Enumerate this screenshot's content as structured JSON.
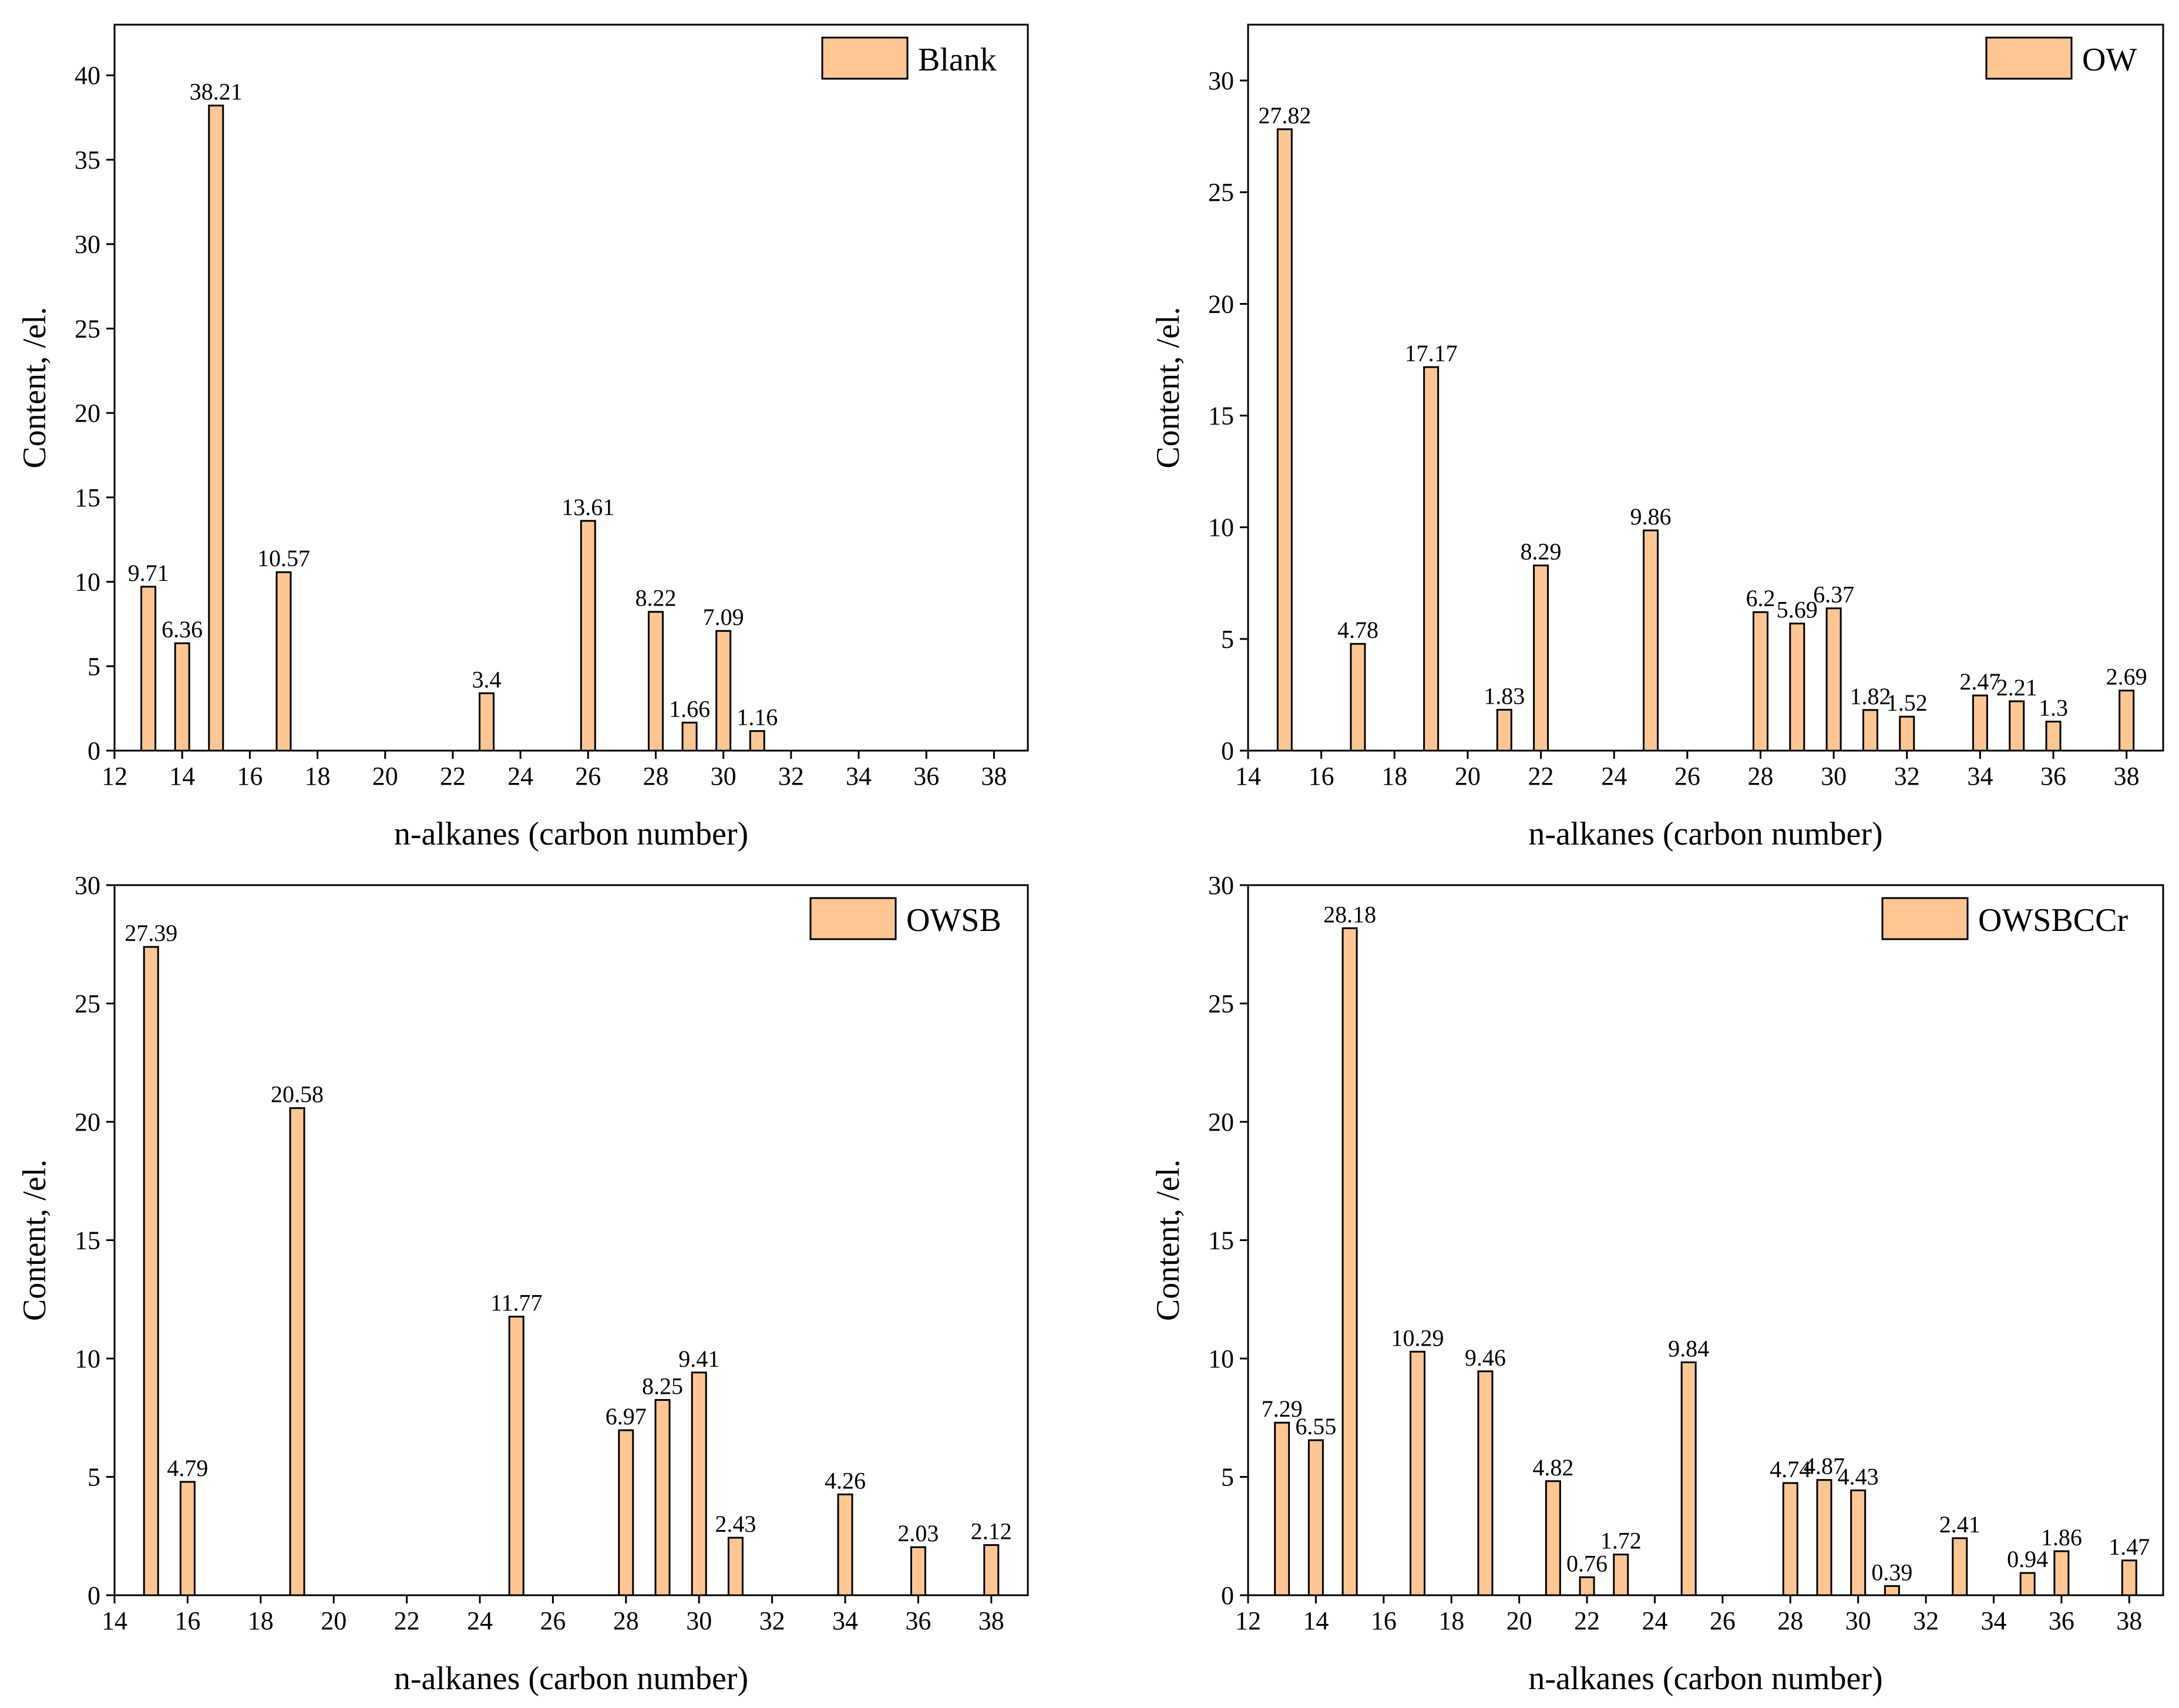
{
  "figure": {
    "bar_color": "#FDC693",
    "bar_stroke": "#000000",
    "background": "#ffffff"
  },
  "chart_data": [
    {
      "type": "bar",
      "id": "blank",
      "legend": "Blank",
      "legend_position": "top-right",
      "xlabel": "n-alkanes (carbon number)",
      "ylabel": "Content, /el.",
      "xlim": [
        12,
        39
      ],
      "ylim": [
        0,
        43
      ],
      "xticks": [
        12,
        14,
        16,
        18,
        20,
        22,
        24,
        26,
        28,
        30,
        32,
        34,
        36,
        38
      ],
      "yticks": [
        0,
        5,
        10,
        15,
        20,
        25,
        30,
        35,
        40
      ],
      "points": [
        {
          "x": 13,
          "y": 9.71,
          "label": "9.71"
        },
        {
          "x": 14,
          "y": 6.36,
          "label": "6.36"
        },
        {
          "x": 15,
          "y": 38.21,
          "label": "38.21"
        },
        {
          "x": 17,
          "y": 10.57,
          "label": "10.57"
        },
        {
          "x": 23,
          "y": 3.4,
          "label": "3.4"
        },
        {
          "x": 26,
          "y": 13.61,
          "label": "13.61"
        },
        {
          "x": 28,
          "y": 8.22,
          "label": "8.22"
        },
        {
          "x": 29,
          "y": 1.66,
          "label": "1.66"
        },
        {
          "x": 30,
          "y": 7.09,
          "label": "7.09"
        },
        {
          "x": 31,
          "y": 1.16,
          "label": "1.16"
        }
      ]
    },
    {
      "type": "bar",
      "id": "ow",
      "legend": "OW",
      "legend_position": "top-right",
      "xlabel": "n-alkanes (carbon number)",
      "ylabel": "Content, /el.",
      "xlim": [
        14,
        39
      ],
      "ylim": [
        0,
        32.5
      ],
      "xticks": [
        14,
        16,
        18,
        20,
        22,
        24,
        26,
        28,
        30,
        32,
        34,
        36,
        38
      ],
      "yticks": [
        0,
        5,
        10,
        15,
        20,
        25,
        30
      ],
      "points": [
        {
          "x": 15,
          "y": 27.82,
          "label": "27.82"
        },
        {
          "x": 17,
          "y": 4.78,
          "label": "4.78"
        },
        {
          "x": 19,
          "y": 17.17,
          "label": "17.17"
        },
        {
          "x": 21,
          "y": 1.83,
          "label": "1.83"
        },
        {
          "x": 22,
          "y": 8.29,
          "label": "8.29"
        },
        {
          "x": 25,
          "y": 9.86,
          "label": "9.86"
        },
        {
          "x": 28,
          "y": 6.2,
          "label": "6.2"
        },
        {
          "x": 29,
          "y": 5.69,
          "label": "5.69"
        },
        {
          "x": 30,
          "y": 6.37,
          "label": "6.37"
        },
        {
          "x": 31,
          "y": 1.82,
          "label": "1.82"
        },
        {
          "x": 32,
          "y": 1.52,
          "label": "1.52"
        },
        {
          "x": 34,
          "y": 2.47,
          "label": "2.47"
        },
        {
          "x": 35,
          "y": 2.21,
          "label": "2.21"
        },
        {
          "x": 36,
          "y": 1.3,
          "label": "1.3"
        },
        {
          "x": 38,
          "y": 2.69,
          "label": "2.69"
        }
      ]
    },
    {
      "type": "bar",
      "id": "owsb",
      "legend": "OWSB",
      "legend_position": "top-right",
      "xlabel": "n-alkanes (carbon number)",
      "ylabel": "Content, /el.",
      "xlim": [
        14,
        39
      ],
      "ylim": [
        0,
        30
      ],
      "xticks": [
        14,
        16,
        18,
        20,
        22,
        24,
        26,
        28,
        30,
        32,
        34,
        36,
        38
      ],
      "yticks": [
        0,
        5,
        10,
        15,
        20,
        25,
        30
      ],
      "points": [
        {
          "x": 15,
          "y": 27.39,
          "label": "27.39"
        },
        {
          "x": 16,
          "y": 4.79,
          "label": "4.79"
        },
        {
          "x": 19,
          "y": 20.58,
          "label": "20.58"
        },
        {
          "x": 25,
          "y": 11.77,
          "label": "11.77"
        },
        {
          "x": 28,
          "y": 6.97,
          "label": "6.97"
        },
        {
          "x": 29,
          "y": 8.25,
          "label": "8.25"
        },
        {
          "x": 30,
          "y": 9.41,
          "label": "9.41"
        },
        {
          "x": 31,
          "y": 2.43,
          "label": "2.43"
        },
        {
          "x": 34,
          "y": 4.26,
          "label": "4.26"
        },
        {
          "x": 36,
          "y": 2.03,
          "label": "2.03"
        },
        {
          "x": 38,
          "y": 2.12,
          "label": "2.12"
        }
      ]
    },
    {
      "type": "bar",
      "id": "owsbccr",
      "legend": "OWSBCCr",
      "legend_position": "top-right",
      "xlabel": "n-alkanes (carbon number)",
      "ylabel": "Content, /el.",
      "xlim": [
        12,
        39
      ],
      "ylim": [
        0,
        30
      ],
      "xticks": [
        12,
        14,
        16,
        18,
        20,
        22,
        24,
        26,
        28,
        30,
        32,
        34,
        36,
        38
      ],
      "yticks": [
        0,
        5,
        10,
        15,
        20,
        25,
        30
      ],
      "points": [
        {
          "x": 13,
          "y": 7.29,
          "label": "7.29"
        },
        {
          "x": 14,
          "y": 6.55,
          "label": "6.55"
        },
        {
          "x": 15,
          "y": 28.18,
          "label": "28.18"
        },
        {
          "x": 17,
          "y": 10.29,
          "label": "10.29"
        },
        {
          "x": 19,
          "y": 9.46,
          "label": "9.46"
        },
        {
          "x": 21,
          "y": 4.82,
          "label": "4.82"
        },
        {
          "x": 22,
          "y": 0.76,
          "label": "0.76"
        },
        {
          "x": 23,
          "y": 1.72,
          "label": "1.72"
        },
        {
          "x": 25,
          "y": 9.84,
          "label": "9.84"
        },
        {
          "x": 28,
          "y": 4.74,
          "label": "4.74"
        },
        {
          "x": 29,
          "y": 4.87,
          "label": "4.87"
        },
        {
          "x": 30,
          "y": 4.43,
          "label": "4.43"
        },
        {
          "x": 31,
          "y": 0.39,
          "label": "0.39"
        },
        {
          "x": 33,
          "y": 2.41,
          "label": "2.41"
        },
        {
          "x": 35,
          "y": 0.94,
          "label": "0.94"
        },
        {
          "x": 36,
          "y": 1.86,
          "label": "1.86"
        },
        {
          "x": 38,
          "y": 1.47,
          "label": "1.47"
        }
      ]
    }
  ]
}
